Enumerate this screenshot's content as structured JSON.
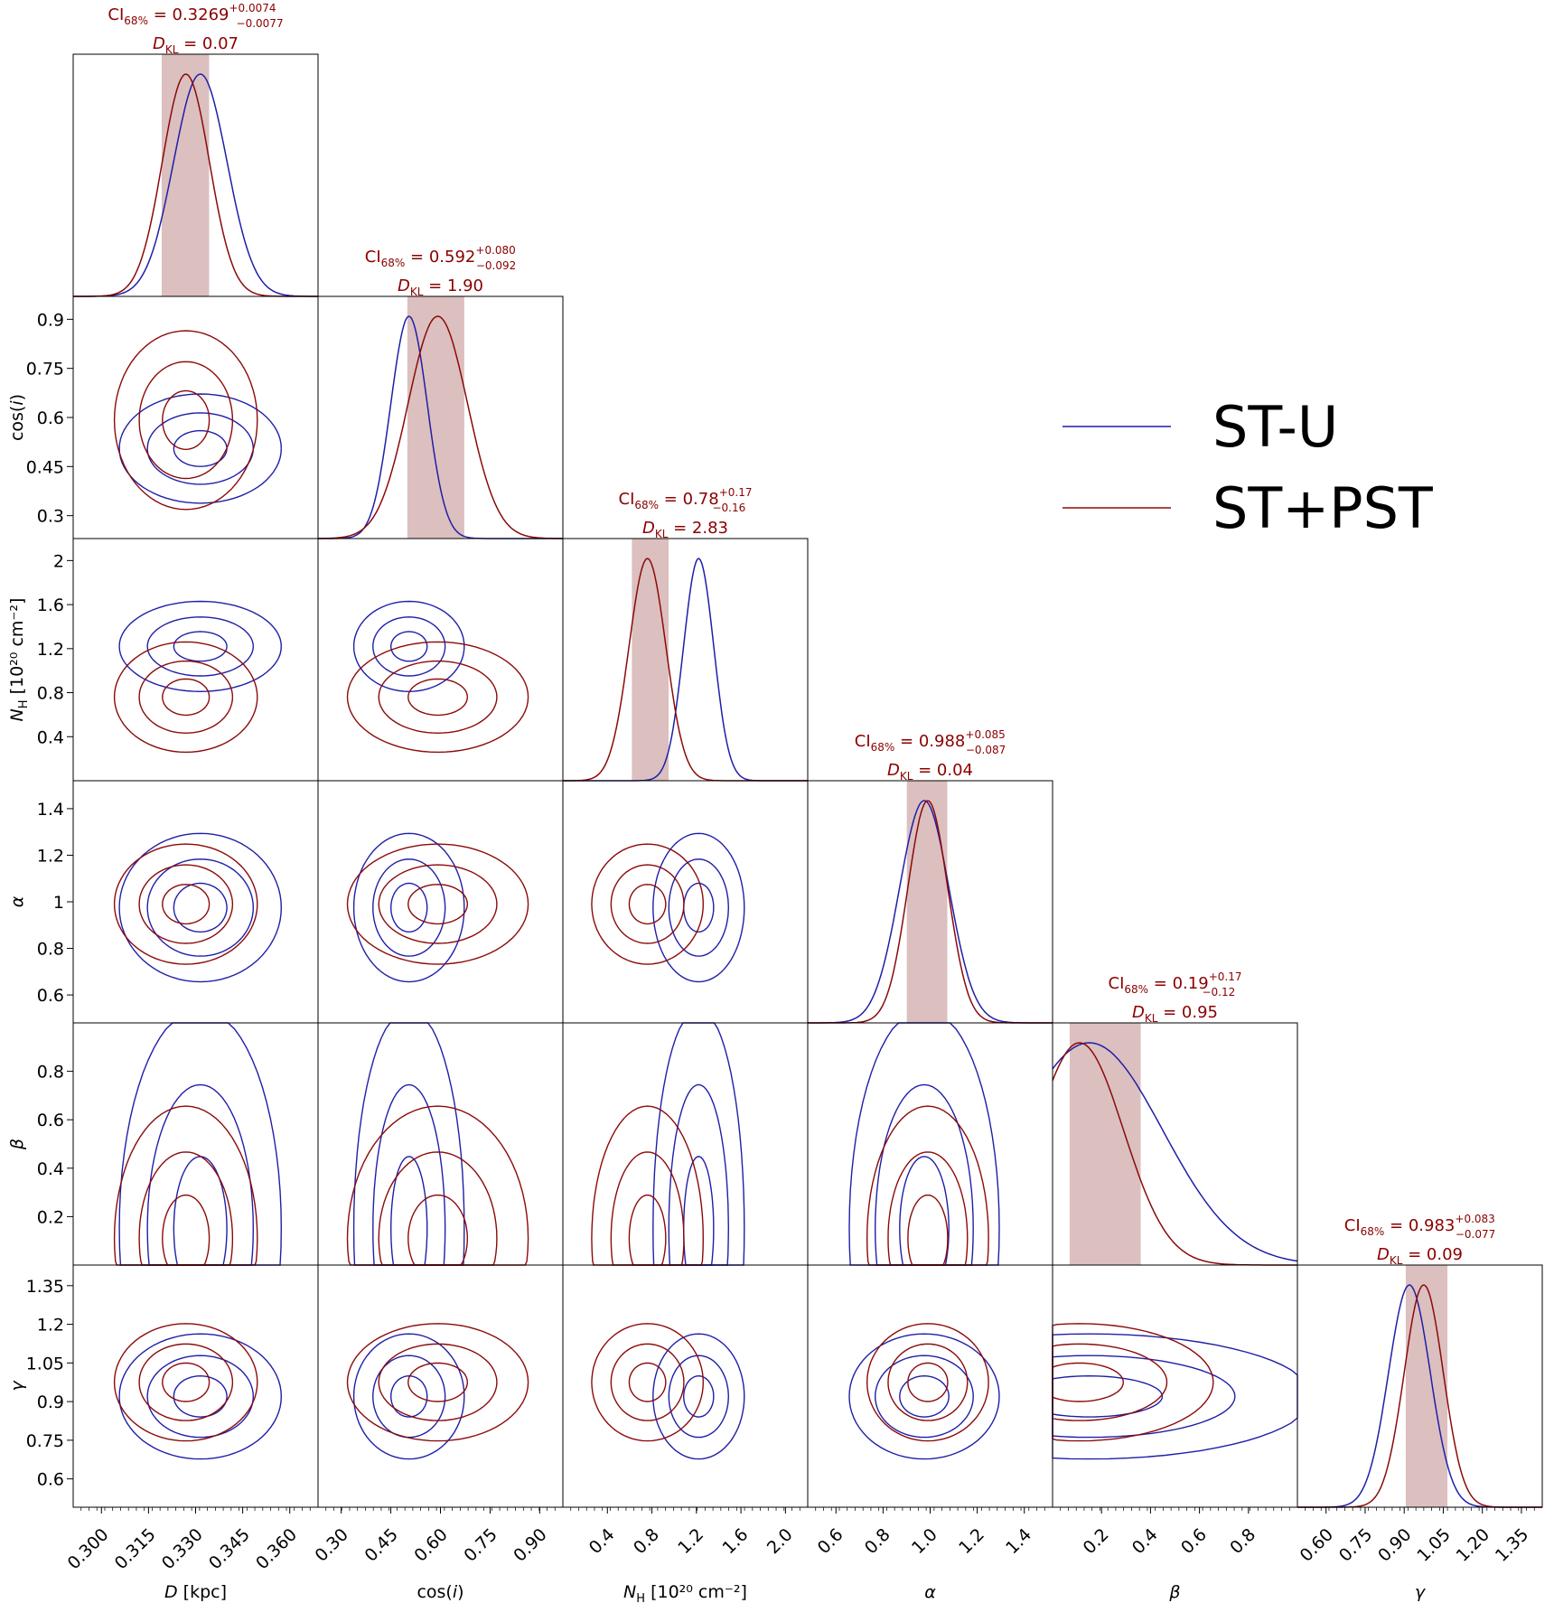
{
  "chart_data": {
    "type": "corner",
    "parameters": [
      {
        "key": "D",
        "label_main": "D",
        "label_unit": " [kpc]",
        "range": [
          0.291,
          0.369
        ],
        "ticks": [
          0.3,
          0.315,
          0.33,
          0.345,
          0.36
        ],
        "tick_labels": [
          "0.300",
          "0.315",
          "0.330",
          "0.345",
          "0.360"
        ]
      },
      {
        "key": "cosi",
        "label_main": "cos(i)",
        "label_unit": "",
        "range": [
          0.23,
          0.97
        ],
        "ticks": [
          0.3,
          0.45,
          0.6,
          0.75,
          0.9
        ],
        "tick_labels": [
          "0.30",
          "0.45",
          "0.60",
          "0.75",
          "0.90"
        ],
        "y_tick_labels": [
          "0.3",
          "0.45",
          "0.6",
          "0.75",
          "0.9"
        ]
      },
      {
        "key": "NH",
        "label_main": "N",
        "label_sub": "H",
        "label_unit": " [10²⁰ cm⁻²]",
        "range": [
          0.0,
          2.2
        ],
        "ticks": [
          0.4,
          0.8,
          1.2,
          1.6,
          2.0
        ],
        "tick_labels": [
          "0.4",
          "0.8",
          "1.2",
          "1.6",
          "2.0"
        ],
        "y_tick_labels": [
          "0.4",
          "0.8",
          "1.2",
          "1.6",
          "2"
        ]
      },
      {
        "key": "alpha",
        "label_main": "α",
        "label_unit": "",
        "range": [
          0.48,
          1.52
        ],
        "ticks": [
          0.6,
          0.8,
          1.0,
          1.2,
          1.4
        ],
        "tick_labels": [
          "0.6",
          "0.8",
          "1.0",
          "1.2",
          "1.4"
        ],
        "y_tick_labels": [
          "0.6",
          "0.8",
          "1",
          "1.2",
          "1.4"
        ]
      },
      {
        "key": "beta",
        "label_main": "β",
        "label_unit": "",
        "range": [
          0.0,
          1.0
        ],
        "ticks": [
          0.2,
          0.4,
          0.6,
          0.8
        ],
        "tick_labels": [
          "0.2",
          "0.4",
          "0.6",
          "0.8"
        ],
        "y_tick_labels": [
          "0.2",
          "0.4",
          "0.6",
          "0.8"
        ]
      },
      {
        "key": "gamma",
        "label_main": "γ",
        "label_unit": "",
        "range": [
          0.49,
          1.43
        ],
        "ticks": [
          0.6,
          0.75,
          0.9,
          1.05,
          1.2,
          1.35
        ],
        "tick_labels": [
          "0.60",
          "0.75",
          "0.90",
          "1.05",
          "1.20",
          "1.35"
        ],
        "y_tick_labels": [
          "0.6",
          "0.75",
          "0.9",
          "1.05",
          "1.2",
          "1.35"
        ]
      }
    ],
    "series": [
      {
        "name": "ST-U",
        "color": "#1f1fa8",
        "mean": [
          0.3315,
          0.505,
          1.22,
          0.975,
          0.15,
          0.92
        ],
        "sigma": [
          0.0085,
          0.055,
          0.135,
          0.105,
          0.3,
          0.08
        ]
      },
      {
        "name": "ST+PST",
        "color": "#8b0a0a",
        "mean": [
          0.3269,
          0.592,
          0.76,
          0.99,
          0.11,
          0.975
        ],
        "sigma": [
          0.0075,
          0.09,
          0.165,
          0.085,
          0.18,
          0.075
        ]
      }
    ],
    "credible_intervals": [
      {
        "value": "0.3269",
        "plus": "+0.0074",
        "minus": "−0.0077",
        "dkl": "0.07",
        "band": [
          0.3192,
          0.3343
        ]
      },
      {
        "value": "0.592",
        "plus": "+0.080",
        "minus": "−0.092",
        "dkl": "1.90",
        "band": [
          0.5,
          0.672
        ]
      },
      {
        "value": "0.78",
        "plus": "+0.17",
        "minus": "−0.16",
        "dkl": "2.83",
        "band": [
          0.62,
          0.95
        ]
      },
      {
        "value": "0.988",
        "plus": "+0.085",
        "minus": "−0.087",
        "dkl": "0.04",
        "band": [
          0.901,
          1.073
        ]
      },
      {
        "value": "0.19",
        "plus": "+0.17",
        "minus": "−0.12",
        "dkl": "0.95",
        "band": [
          0.07,
          0.36
        ]
      },
      {
        "value": "0.983",
        "plus": "+0.083",
        "minus": "−0.077",
        "dkl": "0.09",
        "band": [
          0.906,
          1.066
        ]
      }
    ],
    "title_prefix": "CI",
    "title_ci_sub": "68%",
    "title_dkl_main": "D",
    "title_dkl_sub": "KL",
    "legend": {
      "placement": "right, upper-middle"
    },
    "band_color": "#c08a8a",
    "grid": false
  }
}
